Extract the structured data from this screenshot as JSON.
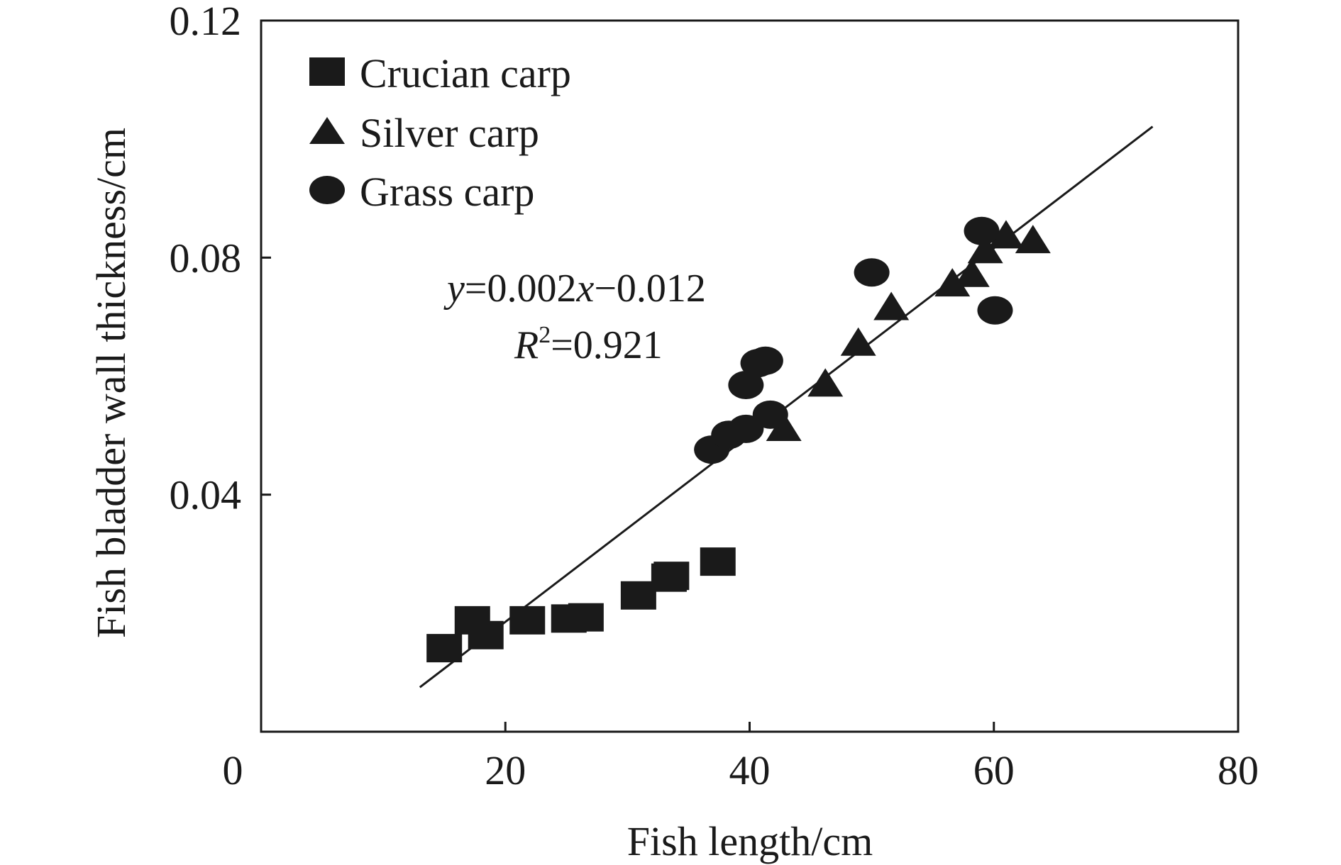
{
  "chart_data": {
    "type": "scatter",
    "xlabel": "Fish length/cm",
    "ylabel": "Fish bladder wall thickness/cm",
    "xlim": [
      0,
      80
    ],
    "ylim": [
      0,
      0.12
    ],
    "x_ticks": [
      "0",
      "20",
      "40",
      "60",
      "80"
    ],
    "y_ticks": [
      "0.04",
      "0.08",
      "0.12"
    ],
    "y_tick_values": [
      0.04,
      0.08,
      0.12
    ],
    "grid": false,
    "legend_placement": "top-left",
    "series": [
      {
        "name": "Crucian carp",
        "marker": "square",
        "color": "#1a1a1a",
        "points": [
          {
            "x": 15.0,
            "y": 0.0141
          },
          {
            "x": 17.3,
            "y": 0.0188
          },
          {
            "x": 18.4,
            "y": 0.0163
          },
          {
            "x": 21.8,
            "y": 0.0188
          },
          {
            "x": 25.2,
            "y": 0.0191
          },
          {
            "x": 26.6,
            "y": 0.0193
          },
          {
            "x": 30.9,
            "y": 0.023
          },
          {
            "x": 33.4,
            "y": 0.026
          },
          {
            "x": 33.6,
            "y": 0.0263
          },
          {
            "x": 37.4,
            "y": 0.0287
          }
        ]
      },
      {
        "name": "Silver carp",
        "marker": "triangle",
        "color": "#1a1a1a",
        "points": [
          {
            "x": 42.8,
            "y": 0.0512
          },
          {
            "x": 46.2,
            "y": 0.0587
          },
          {
            "x": 48.9,
            "y": 0.0656
          },
          {
            "x": 51.6,
            "y": 0.0716
          },
          {
            "x": 56.6,
            "y": 0.0756
          },
          {
            "x": 58.2,
            "y": 0.0772
          },
          {
            "x": 59.3,
            "y": 0.0812
          },
          {
            "x": 61.0,
            "y": 0.0837
          },
          {
            "x": 63.2,
            "y": 0.0829
          }
        ]
      },
      {
        "name": "Grass carp",
        "marker": "circle",
        "color": "#1a1a1a",
        "points": [
          {
            "x": 36.9,
            "y": 0.0476
          },
          {
            "x": 38.3,
            "y": 0.0501
          },
          {
            "x": 39.7,
            "y": 0.0511
          },
          {
            "x": 39.7,
            "y": 0.0585
          },
          {
            "x": 40.7,
            "y": 0.0622
          },
          {
            "x": 41.3,
            "y": 0.0626
          },
          {
            "x": 41.7,
            "y": 0.0535
          },
          {
            "x": 50.0,
            "y": 0.0775
          },
          {
            "x": 59.0,
            "y": 0.0845
          },
          {
            "x": 60.1,
            "y": 0.0711
          }
        ]
      }
    ],
    "fit_line": {
      "equation": "y=0.002x−0.012",
      "r_squared": "R²=0.921",
      "x_range": [
        13.0,
        73.0
      ],
      "y_range": [
        0.0075,
        0.1021
      ]
    },
    "annotations": {
      "eq_y": "y",
      "eq_rest_1": "=0.002",
      "eq_x": "x",
      "eq_rest_2": "−0.012",
      "r_letter": "R",
      "r_exp": "2",
      "r_value": "=0.921"
    }
  }
}
